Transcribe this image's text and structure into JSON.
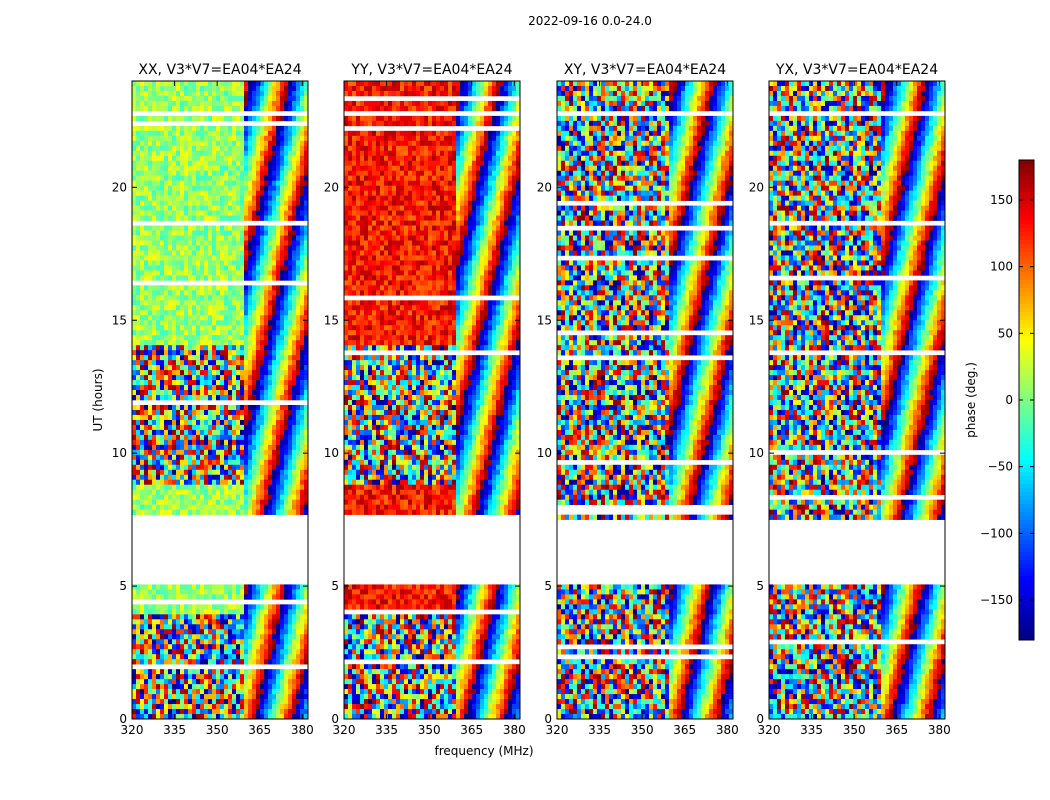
{
  "suptitle": "2022-09-16 0.0-24.0",
  "chart_data": [
    {
      "type": "heatmap",
      "title": "XX, V3*V7=EA04*EA24",
      "xlabel": "",
      "ylabel": "UT (hours)",
      "xlim": [
        320,
        382
      ],
      "ylim": [
        0,
        24
      ],
      "x_ticks": [
        "320",
        "335",
        "350",
        "365",
        "380"
      ],
      "y_ticks": [
        "0",
        "5",
        "10",
        "15",
        "20"
      ],
      "no_data_ut_ranges": [
        [
          5.0,
          7.5
        ],
        [
          22.6,
          22.9
        ]
      ],
      "phase_texture": {
        "low_freq_mean_deg": 10,
        "high_freq_fringe_start_mhz": 360
      }
    },
    {
      "type": "heatmap",
      "title": "YY, V3*V7=EA04*EA24",
      "xlabel": "frequency (MHz)",
      "ylabel": "",
      "xlim": [
        320,
        382
      ],
      "ylim": [
        0,
        24
      ],
      "x_ticks": [
        "320",
        "335",
        "350",
        "365",
        "380"
      ],
      "y_ticks": [
        "0",
        "5",
        "10",
        "15",
        "20"
      ],
      "no_data_ut_ranges": [
        [
          5.0,
          7.5
        ],
        [
          22.6,
          22.9
        ]
      ],
      "phase_texture": {
        "low_freq_mean_deg": 130,
        "high_freq_fringe_start_mhz": 360
      }
    },
    {
      "type": "heatmap",
      "title": "XY, V3*V7=EA04*EA24",
      "xlabel": "",
      "ylabel": "",
      "xlim": [
        320,
        382
      ],
      "ylim": [
        0,
        24
      ],
      "x_ticks": [
        "320",
        "335",
        "350",
        "365",
        "380"
      ],
      "y_ticks": [
        "0",
        "5",
        "10",
        "15",
        "20"
      ],
      "no_data_ut_ranges": [
        [
          5.0,
          7.5
        ],
        [
          22.6,
          22.9
        ]
      ],
      "phase_texture": {
        "low_freq_mean_deg": null,
        "high_freq_fringe_start_mhz": 360
      }
    },
    {
      "type": "heatmap",
      "title": "YX, V3*V7=EA04*EA24",
      "xlabel": "",
      "ylabel": "",
      "xlim": [
        320,
        382
      ],
      "ylim": [
        0,
        24
      ],
      "x_ticks": [
        "320",
        "335",
        "350",
        "365",
        "380"
      ],
      "y_ticks": [
        "0",
        "5",
        "10",
        "15",
        "20"
      ],
      "no_data_ut_ranges": [
        [
          5.0,
          7.5
        ],
        [
          22.6,
          22.9
        ]
      ],
      "phase_texture": {
        "low_freq_mean_deg": null,
        "high_freq_fringe_start_mhz": 360
      }
    }
  ],
  "colorbar": {
    "label": "phase (deg.)",
    "range": [
      -180,
      180
    ],
    "ticks": [
      "150",
      "100",
      "50",
      "0",
      "−50",
      "−100",
      "−150"
    ],
    "tick_values": [
      150,
      100,
      50,
      0,
      -50,
      -100,
      -150
    ],
    "colormap": "jet"
  },
  "colors": {
    "jet_dark_blue": "#00007f",
    "jet_blue": "#0000ff",
    "jet_cyan": "#00ffff",
    "jet_yellow": "#ffff00",
    "jet_red": "#ff0000",
    "jet_dark_red": "#7f0000"
  }
}
